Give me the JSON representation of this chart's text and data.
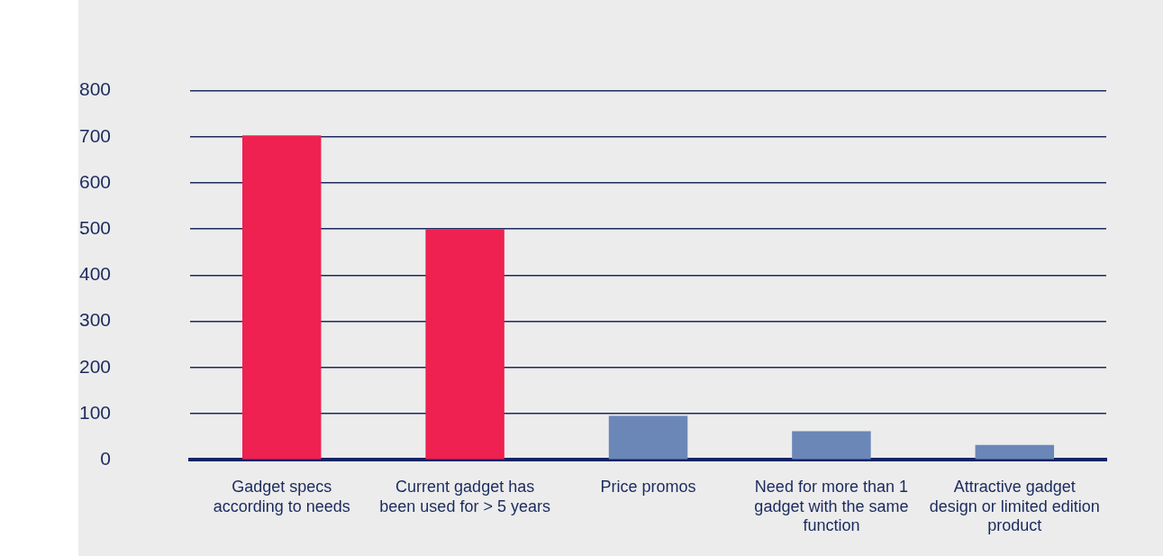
{
  "chart_data": {
    "type": "bar",
    "categories": [
      "Gadget specs according to needs",
      "Current gadget has been used for > 5 years",
      "Price promos",
      "Need for more than 1 gadget with the same function",
      "Attractive gadget design or limited edition product"
    ],
    "values": [
      703,
      500,
      95,
      62,
      32
    ],
    "colors": [
      "#ee2150",
      "#ee2150",
      "#6a87b8",
      "#6a87b8",
      "#6a87b8"
    ],
    "ylim": [
      0,
      800
    ],
    "yticks": [
      0,
      100,
      200,
      300,
      400,
      500,
      600,
      700,
      800
    ],
    "grid": "y",
    "legend": false
  }
}
